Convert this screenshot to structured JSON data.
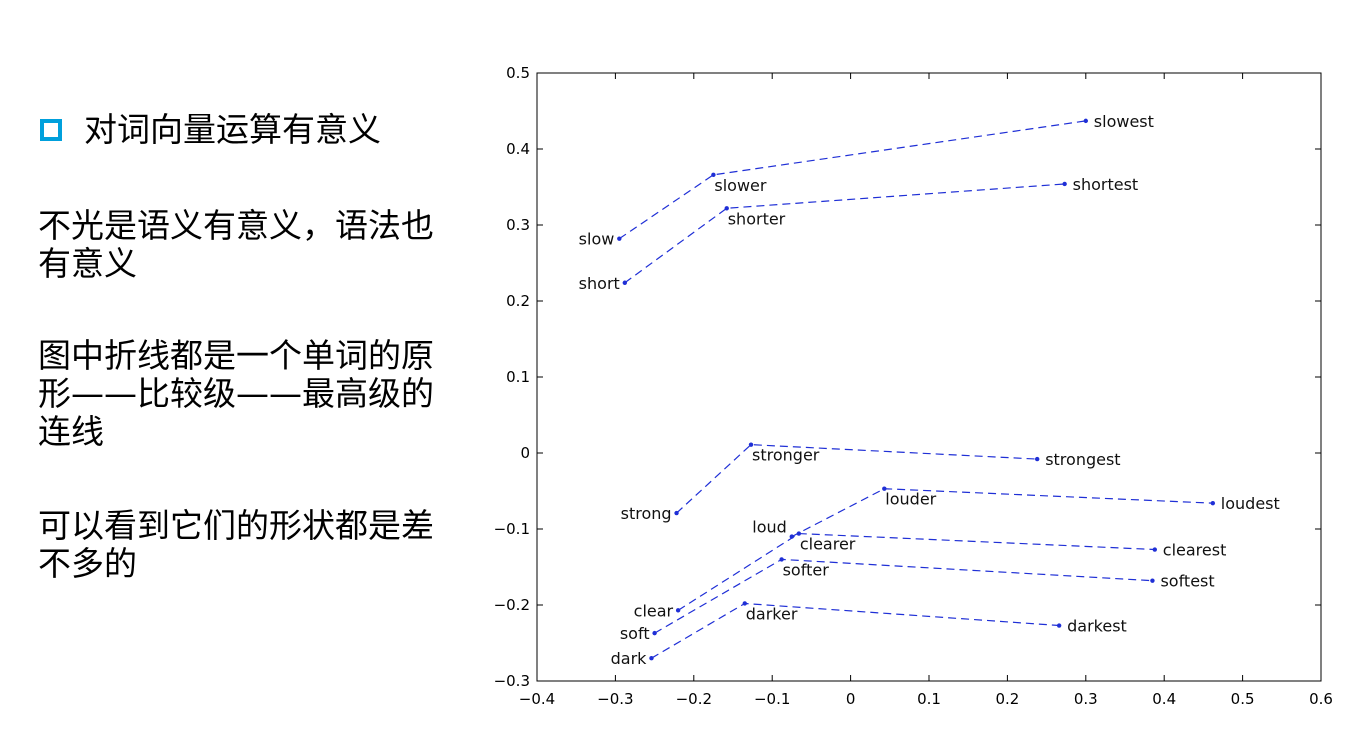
{
  "left_panel": {
    "bullet_heading": "对词向量运算有意义",
    "paragraphs": [
      "不光是语义有意义，语法也有意义",
      "图中折线都是一个单词的原形——比较级——最高级的连线",
      "可以看到它们的形状都是差不多的"
    ]
  },
  "colors": {
    "bullet": "#00a0dc",
    "series": "#1f2fd6"
  },
  "chart_data": {
    "type": "line",
    "title": "",
    "xlabel": "",
    "ylabel": "",
    "xlim": [
      -0.4,
      0.6
    ],
    "ylim": [
      -0.3,
      0.5
    ],
    "xticks": [
      -0.4,
      -0.3,
      -0.2,
      -0.1,
      0,
      0.1,
      0.2,
      0.3,
      0.4,
      0.5,
      0.6
    ],
    "yticks": [
      -0.3,
      -0.2,
      -0.1,
      0,
      0.1,
      0.2,
      0.3,
      0.4,
      0.5
    ],
    "xtick_labels": [
      "−0.4",
      "−0.3",
      "−0.2",
      "−0.1",
      "0",
      "0.1",
      "0.2",
      "0.3",
      "0.4",
      "0.5",
      "0.6"
    ],
    "ytick_labels": [
      "−0.3",
      "−0.2",
      "−0.1",
      "0",
      "0.1",
      "0.2",
      "0.3",
      "0.4",
      "0.5"
    ],
    "series": [
      {
        "name": "slow",
        "points": [
          {
            "label": "slow",
            "x": -0.295,
            "y": 0.282,
            "label_pos": "left"
          },
          {
            "label": "slower",
            "x": -0.175,
            "y": 0.366,
            "label_pos": "below"
          },
          {
            "label": "slowest",
            "x": 0.3,
            "y": 0.437,
            "label_pos": "right"
          }
        ]
      },
      {
        "name": "short",
        "points": [
          {
            "label": "short",
            "x": -0.288,
            "y": 0.224,
            "label_pos": "left"
          },
          {
            "label": "shorter",
            "x": -0.158,
            "y": 0.322,
            "label_pos": "below"
          },
          {
            "label": "shortest",
            "x": 0.273,
            "y": 0.354,
            "label_pos": "right"
          }
        ]
      },
      {
        "name": "strong",
        "points": [
          {
            "label": "strong",
            "x": -0.222,
            "y": -0.079,
            "label_pos": "left"
          },
          {
            "label": "stronger",
            "x": -0.127,
            "y": 0.011,
            "label_pos": "below"
          },
          {
            "label": "strongest",
            "x": 0.238,
            "y": -0.008,
            "label_pos": "right"
          }
        ]
      },
      {
        "name": "loud",
        "points": [
          {
            "label": "loud",
            "x": -0.075,
            "y": -0.11,
            "label_pos": "left-above"
          },
          {
            "label": "louder",
            "x": 0.043,
            "y": -0.047,
            "label_pos": "below"
          },
          {
            "label": "loudest",
            "x": 0.462,
            "y": -0.066,
            "label_pos": "right"
          }
        ]
      },
      {
        "name": "clear",
        "points": [
          {
            "label": "clear",
            "x": -0.22,
            "y": -0.207,
            "label_pos": "left"
          },
          {
            "label": "clearer",
            "x": -0.066,
            "y": -0.106,
            "label_pos": "below"
          },
          {
            "label": "clearest",
            "x": 0.388,
            "y": -0.127,
            "label_pos": "right"
          }
        ]
      },
      {
        "name": "soft",
        "points": [
          {
            "label": "soft",
            "x": -0.25,
            "y": -0.237,
            "label_pos": "left"
          },
          {
            "label": "softer",
            "x": -0.088,
            "y": -0.14,
            "label_pos": "below"
          },
          {
            "label": "softest",
            "x": 0.385,
            "y": -0.168,
            "label_pos": "right"
          }
        ]
      },
      {
        "name": "dark",
        "points": [
          {
            "label": "dark",
            "x": -0.254,
            "y": -0.27,
            "label_pos": "left"
          },
          {
            "label": "darker",
            "x": -0.135,
            "y": -0.198,
            "label_pos": "below"
          },
          {
            "label": "darkest",
            "x": 0.266,
            "y": -0.227,
            "label_pos": "right"
          }
        ]
      }
    ]
  }
}
